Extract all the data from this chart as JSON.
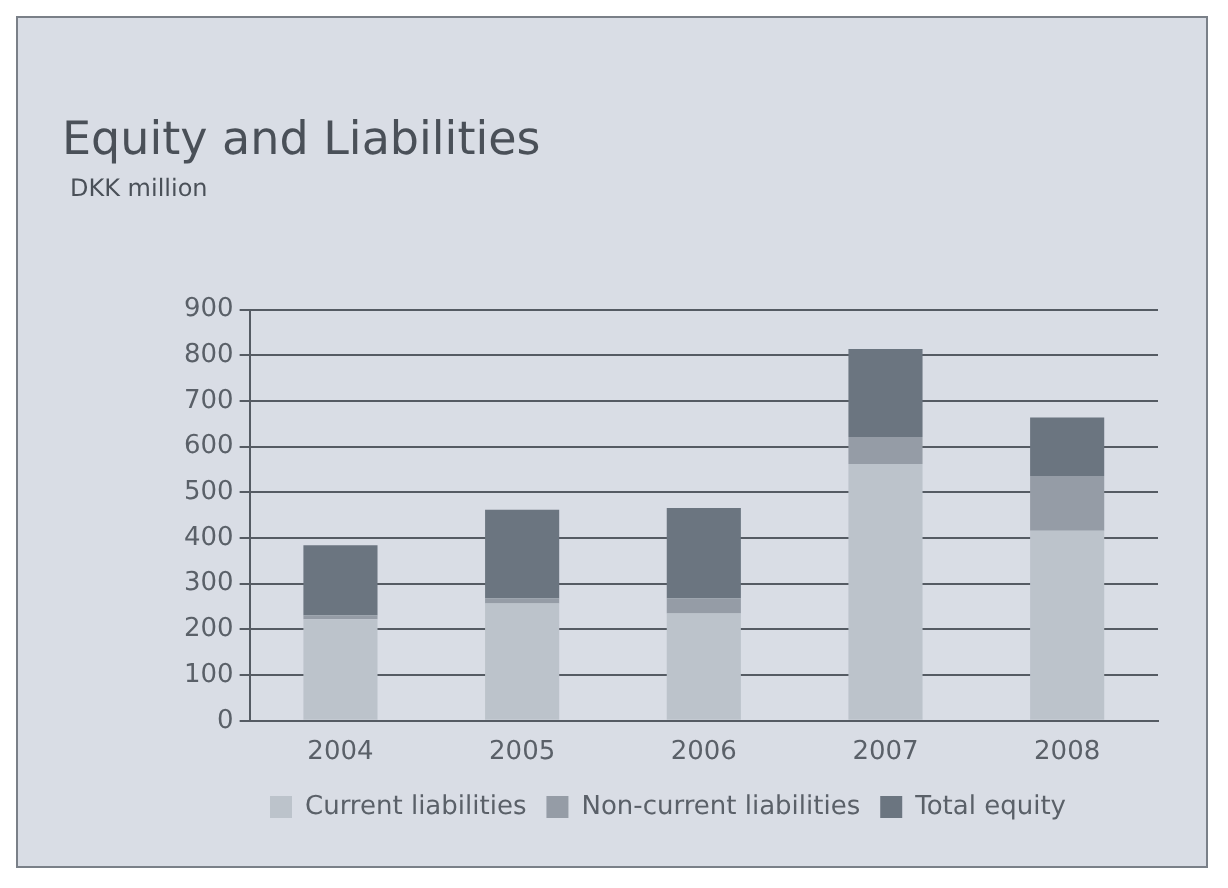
{
  "chart_data": {
    "type": "bar",
    "title": "Equity and Liabilities",
    "subtitle": "DKK million",
    "categories": [
      "2004",
      "2005",
      "2006",
      "2007",
      "2008"
    ],
    "stacked": true,
    "series": [
      {
        "name": "Current liabilities",
        "color": "#bcc3cb",
        "values": [
          222,
          257,
          235,
          562,
          416
        ]
      },
      {
        "name": "Non-current liabilities",
        "color": "#959ca6",
        "values": [
          9,
          11,
          33,
          59,
          120
        ]
      },
      {
        "name": "Total equity",
        "color": "#6b7580",
        "values": [
          153,
          194,
          198,
          193,
          128
        ]
      }
    ],
    "ylim": [
      0,
      900
    ],
    "yticks": [
      0,
      100,
      200,
      300,
      400,
      500,
      600,
      700,
      800,
      900
    ],
    "grid": "y",
    "legend": "bottom"
  }
}
